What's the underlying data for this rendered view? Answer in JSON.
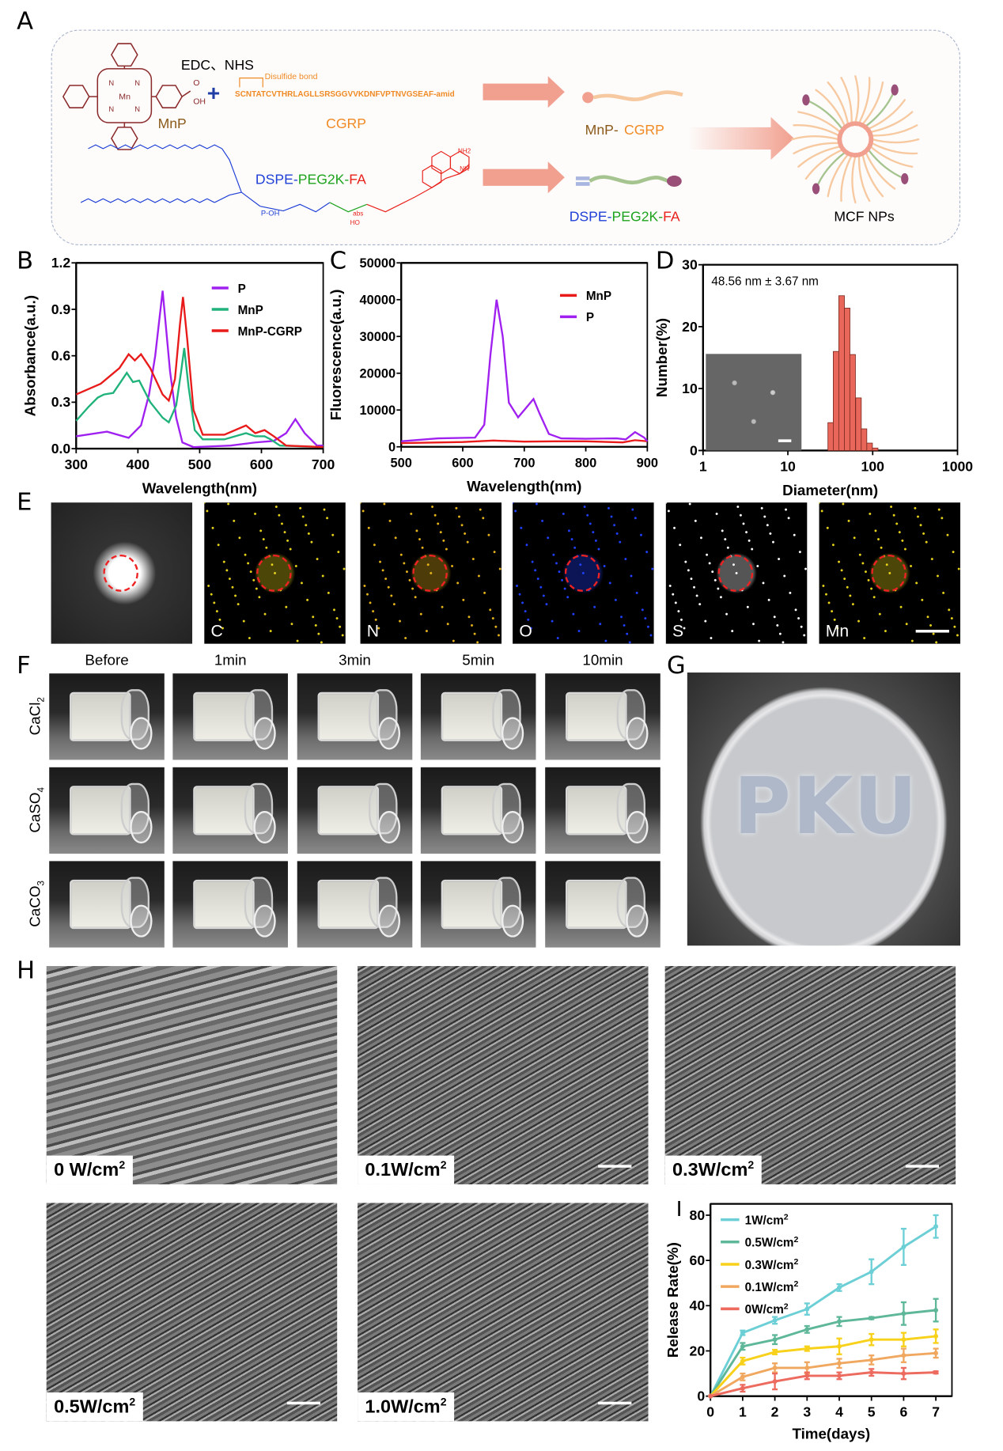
{
  "panels": {
    "A": "A",
    "B": "B",
    "C": "C",
    "D": "D",
    "E": "E",
    "F": "F",
    "G": "G",
    "H": "H",
    "I": "I"
  },
  "panel_a": {
    "reagents": "EDC、NHS",
    "disulfide": "Disulfide bond",
    "sequence": "SCNTATCVTHRLAGLLSRSGGVVKDNFVPTNVGSEAF-amid",
    "mnp": "MnP",
    "cgrp": "CGRP",
    "plus": "+",
    "mnp_cgrp_1": "MnP-",
    "mnp_cgrp_2": "CGRP",
    "dspe": "DSPE-",
    "peg": "PEG2K-",
    "fa": "FA",
    "mcf": "MCF NPs",
    "atoms": {
      "mn": "Mn",
      "n": "N",
      "oh": "OH",
      "o": "O",
      "nh2": "NH2",
      "nh": "NH",
      "abs": "abs",
      "ho": "HO",
      "poh": "P-OH",
      "h": "H"
    },
    "colors": {
      "mnp": "#8b5a1a",
      "cgrp": "#f08a24",
      "dspe": "#1f3fd6",
      "peg": "#1ea31e",
      "fa": "#e8221b",
      "arrow": "#f1a08f"
    }
  },
  "chart_data": [
    {
      "id": "B",
      "type": "line",
      "xlabel": "Wavelength(nm)",
      "ylabel": "Absorbance(a.u.)",
      "xlim": [
        300,
        700
      ],
      "ylim": [
        0,
        1.2
      ],
      "xticks": [
        "300",
        "400",
        "500",
        "600",
        "700"
      ],
      "yticks": [
        "0.0",
        "0.3",
        "0.6",
        "0.9",
        "1.2"
      ],
      "legend": "top-right",
      "series": [
        {
          "name": "P",
          "color": "#a020f0",
          "x": [
            300,
            350,
            385,
            405,
            418,
            428,
            440,
            452,
            462,
            472,
            490,
            550,
            590,
            620,
            640,
            655,
            670,
            690,
            700
          ],
          "y": [
            0.08,
            0.11,
            0.07,
            0.15,
            0.35,
            0.6,
            1.02,
            0.5,
            0.2,
            0.04,
            0.01,
            0.02,
            0.04,
            0.05,
            0.1,
            0.19,
            0.1,
            0.02,
            0.02
          ]
        },
        {
          "name": "MnP",
          "color": "#1fb27a",
          "x": [
            300,
            320,
            335,
            345,
            360,
            372,
            382,
            392,
            402,
            420,
            440,
            450,
            462,
            470,
            475,
            482,
            492,
            505,
            540,
            575,
            590,
            605,
            615,
            630,
            700
          ],
          "y": [
            0.18,
            0.27,
            0.33,
            0.35,
            0.36,
            0.43,
            0.49,
            0.43,
            0.44,
            0.3,
            0.2,
            0.17,
            0.28,
            0.5,
            0.65,
            0.4,
            0.12,
            0.06,
            0.06,
            0.1,
            0.08,
            0.08,
            0.06,
            0.02,
            0.01
          ]
        },
        {
          "name": "MnP-CGRP",
          "color": "#e81a1a",
          "x": [
            300,
            340,
            370,
            385,
            395,
            405,
            420,
            440,
            450,
            460,
            468,
            473,
            480,
            490,
            505,
            540,
            575,
            590,
            605,
            620,
            640,
            700
          ],
          "y": [
            0.35,
            0.42,
            0.52,
            0.61,
            0.57,
            0.61,
            0.52,
            0.35,
            0.31,
            0.45,
            0.8,
            0.98,
            0.7,
            0.25,
            0.09,
            0.09,
            0.15,
            0.1,
            0.12,
            0.08,
            0.02,
            0.01
          ]
        }
      ]
    },
    {
      "id": "C",
      "type": "line",
      "xlabel": "Wavelength(nm)",
      "ylabel": "Fluorescence(a.u.)",
      "xlim": [
        500,
        900
      ],
      "ylim": [
        0,
        50000
      ],
      "xticks": [
        "500",
        "600",
        "700",
        "800",
        "900"
      ],
      "yticks": [
        "0",
        "10000",
        "20000",
        "30000",
        "40000",
        "50000"
      ],
      "legend": "top-right",
      "series": [
        {
          "name": "MnP",
          "color": "#e81a1a",
          "x": [
            500,
            600,
            650,
            700,
            750,
            800,
            860,
            880,
            900
          ],
          "y": [
            1000,
            1300,
            1700,
            1400,
            1500,
            1500,
            1200,
            1800,
            1500
          ]
        },
        {
          "name": "P",
          "color": "#a020f0",
          "x": [
            500,
            560,
            620,
            635,
            645,
            655,
            665,
            675,
            690,
            705,
            715,
            725,
            740,
            760,
            800,
            850,
            865,
            880,
            895,
            900
          ],
          "y": [
            1500,
            2300,
            2500,
            6000,
            25000,
            40000,
            30000,
            12000,
            8000,
            11000,
            13000,
            9000,
            3500,
            2300,
            2200,
            2300,
            2000,
            4000,
            2500,
            1500
          ]
        }
      ]
    },
    {
      "id": "D",
      "type": "bar",
      "xlabel": "Diameter(nm)",
      "ylabel": "Number(%)",
      "xscale": "log",
      "xlim": [
        1,
        1000
      ],
      "ylim": [
        0,
        30
      ],
      "xticks": [
        "1",
        "10",
        "100",
        "1000"
      ],
      "yticks": [
        "0",
        "10",
        "20",
        "30"
      ],
      "annotation": "48.56 nm ± 3.67 nm",
      "color": "#e8675a",
      "x": [
        32,
        37,
        43,
        50,
        58,
        68,
        79,
        92,
        107
      ],
      "values": [
        4.5,
        16,
        25,
        23,
        15.5,
        8.5,
        3.5,
        1.2,
        0.4
      ]
    },
    {
      "id": "I",
      "type": "line",
      "xlabel": "Time(days)",
      "ylabel": "Release Rate(%)",
      "xlim": [
        0,
        7.5
      ],
      "ylim": [
        0,
        85
      ],
      "xticks": [
        "0",
        "1",
        "2",
        "3",
        "4",
        "5",
        "6",
        "7"
      ],
      "yticks": [
        "0",
        "20",
        "40",
        "60",
        "80"
      ],
      "legend": "top-left",
      "x": [
        0,
        1,
        2,
        3,
        4,
        5,
        6,
        7
      ],
      "series": [
        {
          "name": "1W/cm",
          "sup": "2",
          "color": "#6ccfd6",
          "y": [
            0,
            28,
            33.5,
            38.5,
            48,
            55,
            66,
            75
          ],
          "err": [
            0,
            1,
            1.5,
            2.5,
            1.5,
            5.5,
            8,
            5
          ]
        },
        {
          "name": "0.5W/cm",
          "sup": "2",
          "color": "#5fb79a",
          "y": [
            0,
            22,
            25,
            29.5,
            33,
            34.5,
            36.5,
            38
          ],
          "err": [
            0,
            1.5,
            2,
            1.5,
            2,
            0.5,
            5,
            5
          ]
        },
        {
          "name": "0.3W/cm",
          "sup": "2",
          "color": "#f7d11a",
          "y": [
            0,
            15.5,
            19.5,
            21,
            22,
            25,
            25,
            26.5
          ],
          "err": [
            0,
            1.5,
            1,
            1,
            3.5,
            2.5,
            3,
            3
          ]
        },
        {
          "name": "0.1W/cm",
          "sup": "2",
          "color": "#f0a860",
          "y": [
            0,
            8.5,
            12.5,
            12.5,
            14.5,
            16,
            18,
            19
          ],
          "err": [
            0,
            1.5,
            2,
            2.5,
            2,
            2,
            3,
            2
          ]
        },
        {
          "name": "0W/cm",
          "sup": "2",
          "color": "#ec6a5e",
          "y": [
            0,
            3.5,
            6.5,
            9,
            9,
            10.5,
            10,
            10.5
          ],
          "err": [
            0,
            1.5,
            3.5,
            1.5,
            1.5,
            1.5,
            2.5,
            0.5
          ]
        }
      ]
    }
  ],
  "panel_e": {
    "elements": [
      "",
      "C",
      "N",
      "O",
      "S",
      "Mn"
    ],
    "dot_colors": [
      "",
      "#e6d21a",
      "#e6b41a",
      "#2040ff",
      "#ffffff",
      "#e6d21a"
    ]
  },
  "panel_f": {
    "columns": [
      "Before",
      "1min",
      "3min",
      "5min",
      "10min"
    ],
    "rows": [
      {
        "base": "CaCl",
        "sub": "2"
      },
      {
        "base": "CaSO",
        "sub": "4"
      },
      {
        "base": "CaCO",
        "sub": "3"
      }
    ]
  },
  "panel_g": {
    "word": "PKU"
  },
  "panel_h": {
    "labels": [
      {
        "main": "0 W/cm",
        "sup": "2"
      },
      {
        "main": "0.1W/cm",
        "sup": "2"
      },
      {
        "main": "0.3W/cm",
        "sup": "2"
      },
      {
        "main": "0.5W/cm",
        "sup": "2"
      },
      {
        "main": "1.0W/cm",
        "sup": "2"
      }
    ]
  }
}
